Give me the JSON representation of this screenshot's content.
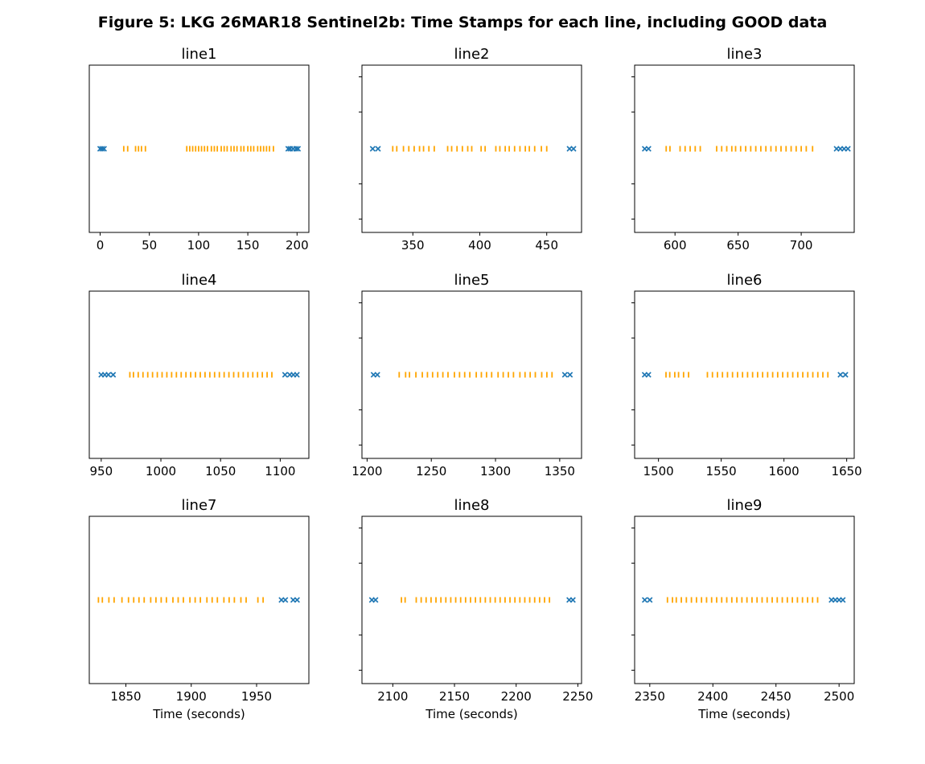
{
  "figure": {
    "title": "Figure 5: LKG 26MAR18  Sentinel2b: Time Stamps for each line, including GOOD data"
  },
  "colors": {
    "all_timestamps": "#1f77b4",
    "good_timestamps": "#ffa500"
  },
  "chart_data": [
    {
      "type": "scatter",
      "title": "line1",
      "xlabel": "",
      "xlim": [
        -11,
        212
      ],
      "xticks": [
        0,
        50,
        100,
        150,
        200
      ],
      "x_markers": [
        0,
        2,
        4,
        191,
        193,
        196,
        199,
        201
      ],
      "good_ticks": [
        24,
        28,
        36,
        39,
        42,
        46,
        88,
        91,
        94,
        97,
        100,
        103,
        106,
        109,
        113,
        116,
        119,
        123,
        126,
        129,
        133,
        136,
        139,
        143,
        146,
        150,
        153,
        156,
        160,
        163,
        166,
        169,
        172,
        176
      ]
    },
    {
      "type": "scatter",
      "title": "line2",
      "xlabel": "",
      "xlim": [
        312,
        476
      ],
      "xticks": [
        350,
        400,
        450
      ],
      "x_markers": [
        320,
        324,
        467,
        470
      ],
      "good_ticks": [
        335,
        338,
        343,
        347,
        351,
        355,
        358,
        362,
        366,
        376,
        379,
        383,
        387,
        391,
        394,
        401,
        404,
        412,
        415,
        419,
        422,
        426,
        430,
        434,
        437,
        441,
        446,
        450
      ]
    },
    {
      "type": "scatter",
      "title": "line3",
      "xlabel": "",
      "xlim": [
        568,
        742
      ],
      "xticks": [
        600,
        650,
        700
      ],
      "x_markers": [
        576,
        579,
        728,
        731,
        734,
        737
      ],
      "good_ticks": [
        593,
        596,
        604,
        608,
        612,
        616,
        620,
        633,
        637,
        641,
        645,
        648,
        652,
        656,
        660,
        664,
        668,
        672,
        676,
        680,
        684,
        688,
        692,
        696,
        700,
        704,
        709
      ]
    },
    {
      "type": "scatter",
      "title": "line4",
      "xlabel": "",
      "xlim": [
        940,
        1124
      ],
      "xticks": [
        950,
        1000,
        1050,
        1100
      ],
      "x_markers": [
        950,
        953,
        956,
        960,
        1104,
        1108,
        1111,
        1114
      ],
      "good_ticks": [
        974,
        977,
        981,
        985,
        989,
        993,
        997,
        1001,
        1005,
        1009,
        1013,
        1017,
        1021,
        1025,
        1029,
        1033,
        1037,
        1041,
        1045,
        1049,
        1053,
        1057,
        1061,
        1065,
        1069,
        1073,
        1077,
        1081,
        1085,
        1089,
        1093
      ]
    },
    {
      "type": "scatter",
      "title": "line5",
      "xlabel": "",
      "xlim": [
        1196,
        1367
      ],
      "xticks": [
        1200,
        1250,
        1300,
        1350
      ],
      "x_markers": [
        1205,
        1208,
        1354,
        1358
      ],
      "good_ticks": [
        1225,
        1230,
        1233,
        1238,
        1243,
        1247,
        1251,
        1255,
        1259,
        1263,
        1268,
        1272,
        1276,
        1280,
        1285,
        1289,
        1293,
        1297,
        1302,
        1306,
        1310,
        1314,
        1319,
        1323,
        1327,
        1331,
        1336,
        1340,
        1344
      ]
    },
    {
      "type": "scatter",
      "title": "line6",
      "xlabel": "",
      "xlim": [
        1481,
        1656
      ],
      "xticks": [
        1500,
        1550,
        1600,
        1650
      ],
      "x_markers": [
        1489,
        1492,
        1645,
        1649
      ],
      "good_ticks": [
        1506,
        1509,
        1513,
        1516,
        1520,
        1524,
        1539,
        1543,
        1547,
        1551,
        1555,
        1559,
        1563,
        1567,
        1571,
        1575,
        1579,
        1583,
        1587,
        1591,
        1595,
        1599,
        1603,
        1607,
        1611,
        1615,
        1619,
        1623,
        1627,
        1631,
        1635
      ]
    },
    {
      "type": "scatter",
      "title": "line7",
      "xlabel": "Time (seconds)",
      "xlim": [
        1822,
        1990
      ],
      "xticks": [
        1850,
        1900,
        1950
      ],
      "x_markers": [
        1969,
        1972,
        1978,
        1981
      ],
      "good_ticks": [
        1829,
        1832,
        1837,
        1841,
        1847,
        1852,
        1856,
        1860,
        1864,
        1869,
        1873,
        1877,
        1881,
        1886,
        1890,
        1894,
        1899,
        1903,
        1907,
        1912,
        1916,
        1920,
        1925,
        1929,
        1933,
        1938,
        1942,
        1951,
        1955
      ]
    },
    {
      "type": "scatter",
      "title": "line8",
      "xlabel": "Time (seconds)",
      "xlim": [
        2075,
        2253
      ],
      "xticks": [
        2100,
        2150,
        2200,
        2250
      ],
      "x_markers": [
        2083,
        2086,
        2243,
        2246
      ],
      "good_ticks": [
        2107,
        2110,
        2119,
        2123,
        2127,
        2131,
        2135,
        2139,
        2143,
        2147,
        2151,
        2155,
        2159,
        2163,
        2167,
        2171,
        2175,
        2179,
        2183,
        2187,
        2191,
        2195,
        2199,
        2203,
        2207,
        2211,
        2215,
        2219,
        2223,
        2227
      ]
    },
    {
      "type": "scatter",
      "title": "line9",
      "xlabel": "Time (seconds)",
      "xlim": [
        2338,
        2512
      ],
      "xticks": [
        2350,
        2400,
        2450,
        2500
      ],
      "x_markers": [
        2346,
        2350,
        2494,
        2497,
        2500,
        2503
      ],
      "good_ticks": [
        2364,
        2368,
        2371,
        2375,
        2379,
        2383,
        2387,
        2391,
        2395,
        2399,
        2403,
        2407,
        2411,
        2415,
        2419,
        2423,
        2427,
        2431,
        2435,
        2439,
        2443,
        2447,
        2451,
        2455,
        2459,
        2463,
        2467,
        2471,
        2475,
        2479,
        2483
      ]
    }
  ]
}
